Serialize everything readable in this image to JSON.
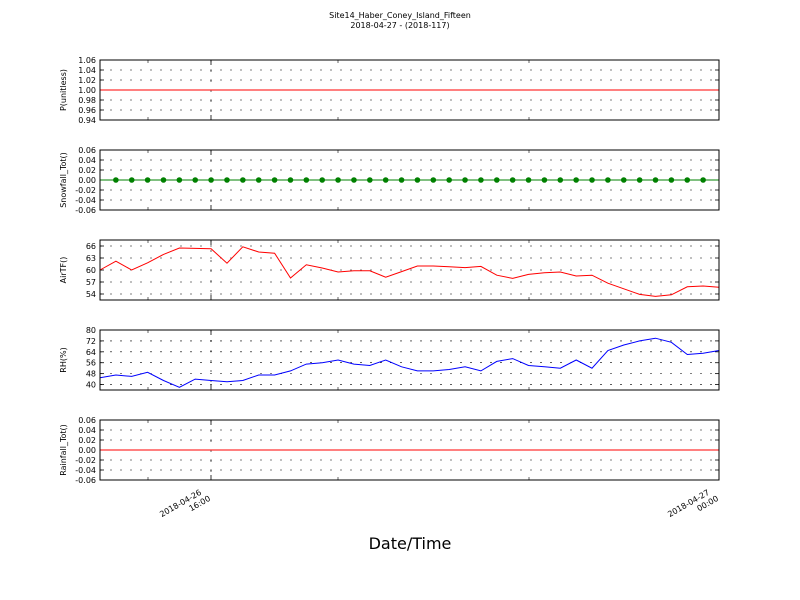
{
  "title": "Site14_Haber_Coney_Island_Fifteen",
  "subtitle": "2018-04-27 - (2018-117)",
  "xlabel": "Date/Time",
  "x_ticks": [
    {
      "label_line1": "2018-04-26",
      "label_line2": "16:00",
      "x": "2018-04-26 16:00"
    },
    {
      "label_line1": "2018-04-27",
      "label_line2": "00:00",
      "x": "2018-04-27 00:00"
    }
  ],
  "colors": {
    "red": "#ff0000",
    "green": "#008000",
    "blue": "#0000ff"
  },
  "chart_data": [
    {
      "type": "line",
      "ylabel": "P(unitless)",
      "ylim": [
        0.94,
        1.06
      ],
      "yticks": [
        "1.06",
        "1.04",
        "1.02",
        "1.00",
        "0.98",
        "0.96",
        "0.94"
      ],
      "series": [
        {
          "color": "#ff0000",
          "marker": false,
          "values": [
            1,
            1,
            1,
            1,
            1,
            1,
            1,
            1,
            1,
            1,
            1,
            1,
            1,
            1,
            1,
            1,
            1,
            1,
            1,
            1,
            1,
            1,
            1,
            1,
            1,
            1,
            1,
            1,
            1,
            1,
            1,
            1,
            1,
            1,
            1,
            1,
            1,
            1,
            1,
            1
          ]
        }
      ]
    },
    {
      "type": "line",
      "ylabel": "Snowfall_Tot()",
      "ylim": [
        -0.06,
        0.06
      ],
      "yticks": [
        "0.06",
        "0.04",
        "0.02",
        "0.00",
        "-0.02",
        "-0.04",
        "-0.06"
      ],
      "series": [
        {
          "color": "#008000",
          "marker": true,
          "values": [
            0,
            0,
            0,
            0,
            0,
            0,
            0,
            0,
            0,
            0,
            0,
            0,
            0,
            0,
            0,
            0,
            0,
            0,
            0,
            0,
            0,
            0,
            0,
            0,
            0,
            0,
            0,
            0,
            0,
            0,
            0,
            0,
            0,
            0,
            0,
            0,
            0,
            0,
            0,
            0
          ]
        }
      ]
    },
    {
      "type": "line",
      "ylabel": "AirTF()",
      "ylim": [
        52.5,
        67.5
      ],
      "yticks": [
        "66",
        "63",
        "60",
        "57",
        "54"
      ],
      "series": [
        {
          "color": "#ff0000",
          "marker": false,
          "values": [
            60.0,
            62.2,
            60.0,
            61.8,
            63.9,
            65.5,
            65.4,
            65.3,
            61.7,
            65.8,
            64.5,
            64.2,
            58.0,
            61.3,
            60.5,
            59.5,
            59.8,
            59.8,
            58.2,
            59.6,
            61.0,
            61.0,
            60.8,
            60.6,
            60.9,
            58.7,
            57.9,
            58.9,
            59.3,
            59.5,
            58.5,
            58.7,
            56.7,
            55.3,
            53.9,
            53.4,
            53.8,
            55.8,
            56.0,
            55.7
          ]
        }
      ]
    },
    {
      "type": "line",
      "ylabel": "RH(%)",
      "ylim": [
        36,
        80
      ],
      "yticks": [
        "80",
        "72",
        "64",
        "56",
        "48",
        "40"
      ],
      "series": [
        {
          "color": "#0000ff",
          "marker": false,
          "values": [
            45,
            47,
            46,
            49,
            43,
            38,
            44,
            43,
            42,
            43,
            47,
            47,
            50,
            55,
            56,
            58,
            55,
            54,
            58,
            53,
            50,
            50,
            51,
            53,
            50,
            57,
            59,
            54,
            53,
            52,
            58,
            52,
            65,
            69,
            72,
            74,
            71,
            62,
            63,
            65
          ]
        }
      ]
    },
    {
      "type": "line",
      "ylabel": "Rainfall_Tot()",
      "ylim": [
        -0.06,
        0.06
      ],
      "yticks": [
        "0.06",
        "0.04",
        "0.02",
        "0.00",
        "-0.02",
        "-0.04",
        "-0.06"
      ],
      "series": [
        {
          "color": "#ff0000",
          "marker": false,
          "values": [
            0,
            0,
            0,
            0,
            0,
            0,
            0,
            0,
            0,
            0,
            0,
            0,
            0,
            0,
            0,
            0,
            0,
            0,
            0,
            0,
            0,
            0,
            0,
            0,
            0,
            0,
            0,
            0,
            0,
            0,
            0,
            0,
            0,
            0,
            0,
            0,
            0,
            0,
            0,
            0
          ]
        }
      ]
    }
  ]
}
